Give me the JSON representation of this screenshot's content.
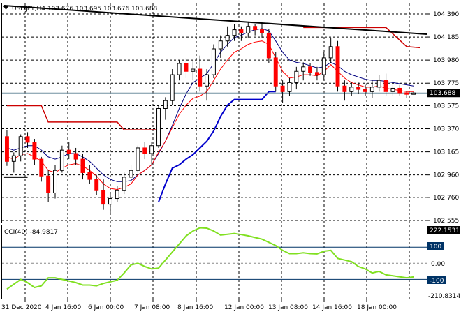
{
  "colors": {
    "background": "#ffffff",
    "grid": "#000000",
    "bull_candle": "#ffffff",
    "bear_candle": "#ff0000",
    "candle_outline": "#000000",
    "price_badge": "#000000",
    "ma_fast": "#ff0000",
    "ma_slow": "#000080",
    "support_line": "#0000cc",
    "resistance_line": "#cc0000",
    "trendline": "#000000",
    "cci_line": "#80e020",
    "cci_levels": "#003366"
  },
  "header": {
    "arrow_icon": "triangle-down-icon",
    "text": "USDJPY,H4  103.676 103.695 103.676 103.688"
  },
  "price_panel": {
    "y_ticks": [
      "104.390",
      "104.185",
      "103.980",
      "103.775",
      "103.575",
      "103.370",
      "103.165",
      "102.960",
      "102.760",
      "102.555"
    ],
    "current_price": "103.688"
  },
  "cci_panel": {
    "label": "CCI(40) -84.9817",
    "max_label": "222.1531",
    "min_label": "-210.8314",
    "y_ticks": [
      "100",
      "0.00",
      "-100"
    ]
  },
  "x_axis": {
    "labels": [
      "31 Dec 2020",
      "4 Jan 16:00",
      "6 Jan 00:00",
      "7 Jan 08:00",
      "8 Jan 16:00",
      "12 Jan 00:00",
      "13 Jan 08:00",
      "14 Jan 16:00",
      "18 Jan 00:00"
    ]
  },
  "chart_data": {
    "type": "candlestick",
    "symbol": "USDJPY",
    "timeframe": "H4",
    "ylim": [
      102.555,
      104.39
    ],
    "cci_ylim": [
      -210.8314,
      222.1531
    ],
    "candles": [
      [
        103.3,
        103.36,
        103.04,
        103.08
      ],
      [
        103.08,
        103.16,
        102.98,
        103.13
      ],
      [
        103.13,
        103.32,
        103.08,
        103.3
      ],
      [
        103.3,
        103.34,
        103.2,
        103.25
      ],
      [
        103.25,
        103.28,
        103.05,
        103.1
      ],
      [
        103.1,
        103.12,
        102.9,
        102.95
      ],
      [
        102.95,
        103.0,
        102.72,
        102.8
      ],
      [
        102.8,
        103.05,
        102.75,
        103.0
      ],
      [
        103.0,
        103.22,
        102.98,
        103.18
      ],
      [
        103.18,
        103.25,
        103.1,
        103.15
      ],
      [
        103.15,
        103.2,
        103.05,
        103.1
      ],
      [
        103.1,
        103.15,
        102.92,
        102.98
      ],
      [
        102.98,
        103.05,
        102.88,
        102.92
      ],
      [
        102.92,
        102.96,
        102.78,
        102.82
      ],
      [
        102.82,
        102.92,
        102.65,
        102.7
      ],
      [
        102.7,
        102.8,
        102.62,
        102.75
      ],
      [
        102.75,
        102.86,
        102.72,
        102.82
      ],
      [
        102.82,
        102.98,
        102.79,
        102.94
      ],
      [
        102.94,
        103.05,
        102.9,
        103.0
      ],
      [
        103.0,
        103.22,
        102.98,
        103.2
      ],
      [
        103.2,
        103.25,
        103.1,
        103.15
      ],
      [
        103.15,
        103.25,
        103.05,
        103.22
      ],
      [
        103.22,
        103.58,
        103.2,
        103.55
      ],
      [
        103.55,
        103.65,
        103.45,
        103.62
      ],
      [
        103.62,
        103.9,
        103.58,
        103.85
      ],
      [
        103.85,
        103.98,
        103.8,
        103.95
      ],
      [
        103.95,
        104.0,
        103.82,
        103.88
      ],
      [
        103.88,
        103.98,
        103.8,
        103.9
      ],
      [
        103.9,
        104.02,
        103.7,
        103.75
      ],
      [
        103.75,
        103.9,
        103.62,
        103.85
      ],
      [
        103.85,
        104.12,
        103.82,
        104.08
      ],
      [
        104.08,
        104.2,
        104.0,
        104.15
      ],
      [
        104.15,
        104.28,
        104.1,
        104.2
      ],
      [
        104.2,
        104.3,
        104.15,
        104.25
      ],
      [
        104.25,
        104.28,
        104.15,
        104.22
      ],
      [
        104.22,
        104.32,
        104.18,
        104.28
      ],
      [
        104.28,
        104.3,
        104.2,
        104.25
      ],
      [
        104.25,
        104.3,
        104.18,
        104.22
      ],
      [
        104.22,
        104.26,
        103.95,
        104.0
      ],
      [
        104.0,
        104.05,
        103.7,
        103.75
      ],
      [
        103.75,
        103.8,
        103.6,
        103.7
      ],
      [
        103.7,
        103.82,
        103.66,
        103.78
      ],
      [
        103.78,
        103.92,
        103.72,
        103.88
      ],
      [
        103.88,
        103.96,
        103.8,
        103.92
      ],
      [
        103.92,
        103.95,
        103.84,
        103.87
      ],
      [
        103.87,
        103.92,
        103.8,
        103.85
      ],
      [
        103.85,
        104.05,
        103.8,
        104.0
      ],
      [
        104.0,
        104.18,
        103.95,
        104.1
      ],
      [
        104.1,
        104.15,
        103.7,
        103.75
      ],
      [
        103.75,
        103.8,
        103.62,
        103.7
      ],
      [
        103.7,
        103.78,
        103.66,
        103.74
      ],
      [
        103.74,
        103.78,
        103.68,
        103.72
      ],
      [
        103.72,
        103.76,
        103.66,
        103.7
      ],
      [
        103.7,
        103.8,
        103.64,
        103.74
      ],
      [
        103.74,
        103.85,
        103.7,
        103.8
      ],
      [
        103.8,
        103.86,
        103.66,
        103.7
      ],
      [
        103.7,
        103.76,
        103.66,
        103.73
      ],
      [
        103.73,
        103.76,
        103.66,
        103.69
      ],
      [
        103.69,
        103.7,
        103.64,
        103.676
      ],
      [
        103.676,
        103.695,
        103.676,
        103.688
      ]
    ],
    "ma_fast": [
      103.12,
      103.1,
      103.14,
      103.15,
      103.12,
      103.08,
      103.0,
      102.98,
      103.02,
      103.05,
      103.06,
      103.04,
      103.0,
      102.95,
      102.88,
      102.84,
      102.83,
      102.85,
      102.88,
      102.96,
      103.0,
      103.05,
      103.16,
      103.26,
      103.38,
      103.5,
      103.58,
      103.64,
      103.66,
      103.7,
      103.8,
      103.9,
      103.98,
      104.05,
      104.08,
      104.12,
      104.14,
      104.15,
      104.12,
      104.0,
      103.88,
      103.82,
      103.83,
      103.85,
      103.85,
      103.84,
      103.88,
      103.94,
      103.88,
      103.82,
      103.78,
      103.76,
      103.74,
      103.74,
      103.75,
      103.73,
      103.72,
      103.71,
      103.7,
      103.7
    ],
    "ma_slow": [
      103.2,
      103.18,
      103.2,
      103.22,
      103.22,
      103.18,
      103.12,
      103.1,
      103.12,
      103.15,
      103.15,
      103.12,
      103.08,
      103.02,
      102.96,
      102.92,
      102.9,
      102.9,
      102.91,
      102.96,
      103.0,
      103.05,
      103.15,
      103.26,
      103.4,
      103.55,
      103.68,
      103.78,
      103.82,
      103.86,
      103.95,
      104.05,
      104.12,
      104.18,
      104.2,
      104.23,
      104.25,
      104.26,
      104.24,
      104.15,
      104.05,
      103.98,
      103.96,
      103.95,
      103.93,
      103.91,
      103.92,
      103.96,
      103.93,
      103.88,
      103.85,
      103.83,
      103.81,
      103.8,
      103.8,
      103.79,
      103.78,
      103.77,
      103.76,
      103.75
    ],
    "support_line": [
      null,
      null,
      null,
      null,
      null,
      null,
      null,
      null,
      null,
      null,
      null,
      null,
      null,
      null,
      null,
      null,
      null,
      null,
      null,
      null,
      null,
      null,
      102.72,
      102.88,
      103.02,
      103.05,
      103.1,
      103.14,
      103.2,
      103.26,
      103.35,
      103.48,
      103.58,
      103.63,
      103.63,
      103.63,
      103.63,
      103.63,
      103.7,
      103.7,
      null,
      null,
      null,
      null,
      null,
      null,
      null,
      null,
      null,
      null,
      null,
      null,
      null,
      null,
      null,
      null,
      null,
      null,
      null,
      null
    ],
    "resistance_segments": [
      [
        [
          0,
          103.575
        ],
        [
          5,
          103.575
        ],
        [
          6,
          103.43
        ],
        [
          16,
          103.43
        ],
        [
          17,
          103.36
        ],
        [
          22,
          103.36
        ]
      ],
      [
        [
          43,
          104.27
        ],
        [
          55,
          104.27
        ],
        [
          58,
          104.1
        ],
        [
          60,
          104.09
        ]
      ]
    ],
    "trendline": [
      [
        0,
        104.39
      ],
      [
        60,
        104.21
      ]
    ],
    "level_line": [
      [
        0,
        102.94
      ],
      [
        3,
        102.94
      ]
    ],
    "cci": [
      -160,
      -130,
      -100,
      -120,
      -150,
      -140,
      -90,
      -90,
      -100,
      -110,
      -120,
      -135,
      -135,
      -140,
      -125,
      -115,
      -105,
      -60,
      -10,
      0,
      -20,
      -35,
      -30,
      20,
      70,
      120,
      170,
      200,
      220,
      218,
      200,
      175,
      180,
      185,
      178,
      170,
      160,
      150,
      130,
      110,
      80,
      60,
      60,
      65,
      60,
      58,
      75,
      80,
      30,
      20,
      10,
      -20,
      -35,
      -60,
      -50,
      -72,
      -78,
      -84,
      -90,
      -85
    ]
  }
}
